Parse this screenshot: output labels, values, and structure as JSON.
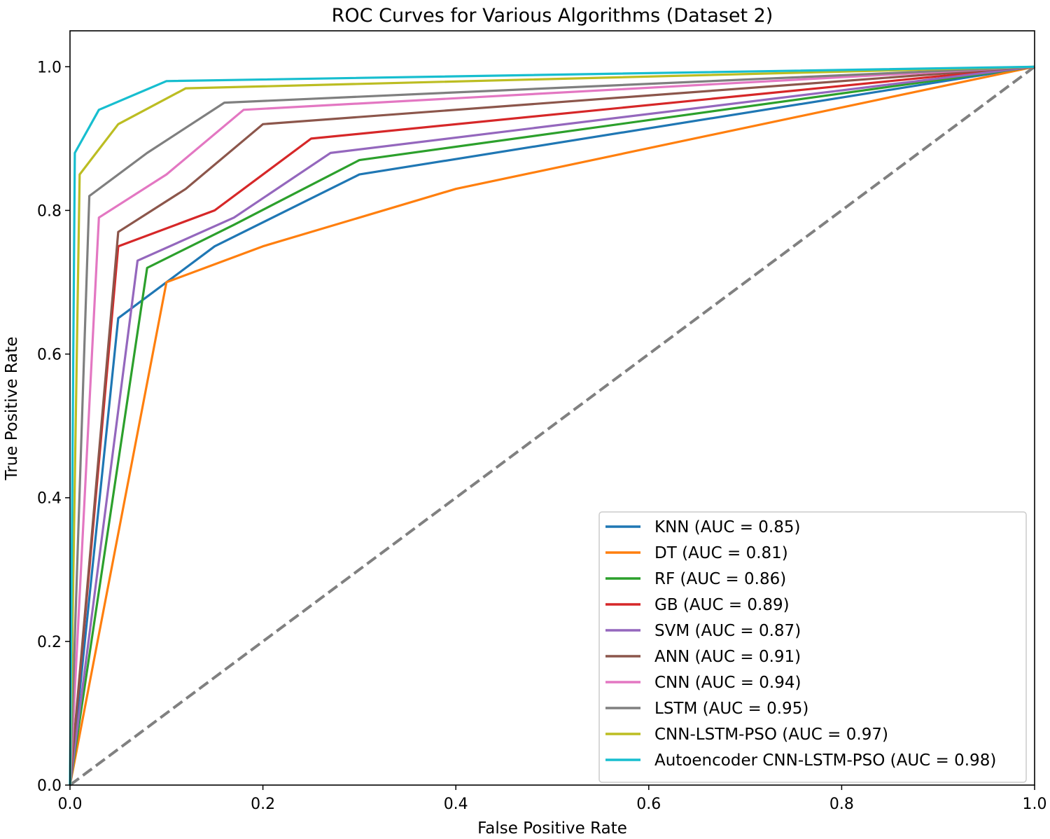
{
  "chart_data": {
    "type": "line",
    "title": "ROC Curves for Various Algorithms (Dataset 2)",
    "xlabel": "False Positive Rate",
    "ylabel": "True Positive Rate",
    "xlim": [
      0.0,
      1.0
    ],
    "ylim": [
      0.0,
      1.05
    ],
    "xticks": [
      "0.0",
      "0.2",
      "0.4",
      "0.6",
      "0.8",
      "1.0"
    ],
    "yticks": [
      "0.0",
      "0.2",
      "0.4",
      "0.6",
      "0.8",
      "1.0"
    ],
    "grid": false,
    "legend_position": "bottom-right",
    "series": [
      {
        "name": "KNN (AUC = 0.85)",
        "color": "#1f77b4",
        "x": [
          0,
          0.05,
          0.15,
          0.3,
          1.0
        ],
        "y": [
          0,
          0.65,
          0.75,
          0.85,
          1.0
        ]
      },
      {
        "name": "DT (AUC = 0.81)",
        "color": "#ff7f0e",
        "x": [
          0,
          0.1,
          0.2,
          0.4,
          1.0
        ],
        "y": [
          0,
          0.7,
          0.75,
          0.83,
          1.0
        ]
      },
      {
        "name": "RF (AUC = 0.86)",
        "color": "#2ca02c",
        "x": [
          0,
          0.08,
          0.17,
          0.3,
          1.0
        ],
        "y": [
          0,
          0.72,
          0.78,
          0.87,
          1.0
        ]
      },
      {
        "name": "GB (AUC = 0.89)",
        "color": "#d62728",
        "x": [
          0,
          0.05,
          0.15,
          0.25,
          1.0
        ],
        "y": [
          0,
          0.75,
          0.8,
          0.9,
          1.0
        ]
      },
      {
        "name": "SVM (AUC = 0.87)",
        "color": "#9467bd",
        "x": [
          0,
          0.07,
          0.17,
          0.27,
          1.0
        ],
        "y": [
          0,
          0.73,
          0.79,
          0.88,
          1.0
        ]
      },
      {
        "name": "ANN (AUC = 0.91)",
        "color": "#8c564b",
        "x": [
          0,
          0.05,
          0.12,
          0.2,
          1.0
        ],
        "y": [
          0,
          0.77,
          0.83,
          0.92,
          1.0
        ]
      },
      {
        "name": "CNN (AUC = 0.94)",
        "color": "#e377c2",
        "x": [
          0,
          0.03,
          0.1,
          0.18,
          1.0
        ],
        "y": [
          0,
          0.79,
          0.85,
          0.94,
          1.0
        ]
      },
      {
        "name": "LSTM (AUC = 0.95)",
        "color": "#7f7f7f",
        "x": [
          0,
          0.02,
          0.08,
          0.16,
          1.0
        ],
        "y": [
          0,
          0.82,
          0.88,
          0.95,
          1.0
        ]
      },
      {
        "name": "CNN-LSTM-PSO (AUC = 0.97)",
        "color": "#bcbd22",
        "x": [
          0,
          0.01,
          0.05,
          0.12,
          1.0
        ],
        "y": [
          0,
          0.85,
          0.92,
          0.97,
          1.0
        ]
      },
      {
        "name": "Autoencoder CNN-LSTM-PSO (AUC = 0.98)",
        "color": "#17becf",
        "x": [
          0,
          0.005,
          0.03,
          0.1,
          1.0
        ],
        "y": [
          0,
          0.88,
          0.94,
          0.98,
          1.0
        ]
      }
    ],
    "reference_line": {
      "x": [
        0,
        1
      ],
      "y": [
        0,
        1
      ],
      "style": "dashed",
      "color": "#808080"
    }
  }
}
